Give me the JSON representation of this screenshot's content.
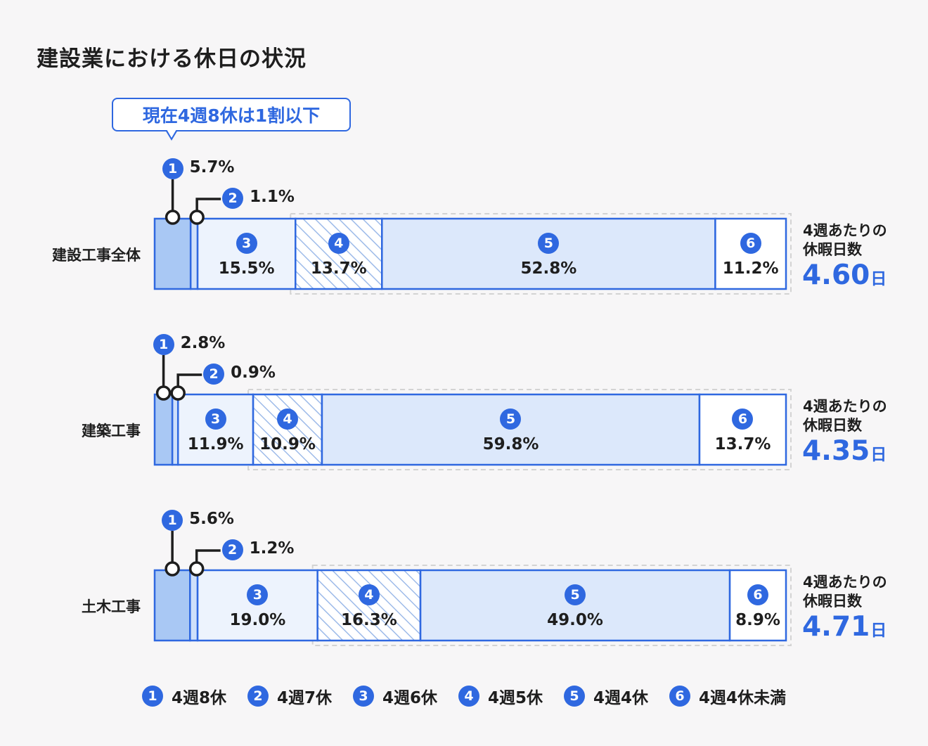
{
  "title": "建設業における休日の状況",
  "callout": "現在4週8休は1割以下",
  "side_label_line1": "4週あたりの",
  "side_label_line2": "休暇日数",
  "side_unit": "日",
  "colors": {
    "accent": "#2f68e0",
    "seg1": "#a9c8f4",
    "seg2": "#cfe0fa",
    "seg3": "#edf3fd",
    "seg4_hatch": "#9ebbe9",
    "seg5": "#dce8fb",
    "seg6": "#ffffff",
    "dashed_box": "#d3d3d3"
  },
  "legend": [
    {
      "num": "1",
      "label": "4週8休"
    },
    {
      "num": "2",
      "label": "4週7休"
    },
    {
      "num": "3",
      "label": "4週6休"
    },
    {
      "num": "4",
      "label": "4週5休"
    },
    {
      "num": "5",
      "label": "4週4休"
    },
    {
      "num": "6",
      "label": "4週4休未満"
    }
  ],
  "chart_data": {
    "type": "bar",
    "orientation": "horizontal",
    "stacked": true,
    "normalized": true,
    "categories": [
      "建設工事全体",
      "建築工事",
      "土木工事"
    ],
    "series": [
      {
        "name": "4週8休",
        "values": [
          5.7,
          2.8,
          5.6
        ],
        "labels": [
          "5.7%",
          "2.8%",
          "5.6%"
        ]
      },
      {
        "name": "4週7休",
        "values": [
          1.1,
          0.9,
          1.2
        ],
        "labels": [
          "1.1%",
          "0.9%",
          "1.2%"
        ]
      },
      {
        "name": "4週6休",
        "values": [
          15.5,
          11.9,
          19.0
        ],
        "labels": [
          "15.5%",
          "11.9%",
          "19.0%"
        ]
      },
      {
        "name": "4週5休",
        "values": [
          13.7,
          10.9,
          16.3
        ],
        "labels": [
          "13.7%",
          "10.9%",
          "16.3%"
        ]
      },
      {
        "name": "4週4休",
        "values": [
          52.8,
          59.8,
          49.0
        ],
        "labels": [
          "52.8%",
          "59.8%",
          "49.0%"
        ]
      },
      {
        "name": "4週4休未満",
        "values": [
          11.2,
          13.7,
          8.9
        ],
        "labels": [
          "11.2%",
          "13.7%",
          "8.9%"
        ]
      }
    ],
    "average_days": [
      "4.60",
      "4.35",
      "4.71"
    ],
    "segment_numbers": [
      "1",
      "2",
      "3",
      "4",
      "5",
      "6"
    ],
    "dashed_group": "segments 4-6 outlined with dashed box",
    "legend_position": "bottom"
  }
}
